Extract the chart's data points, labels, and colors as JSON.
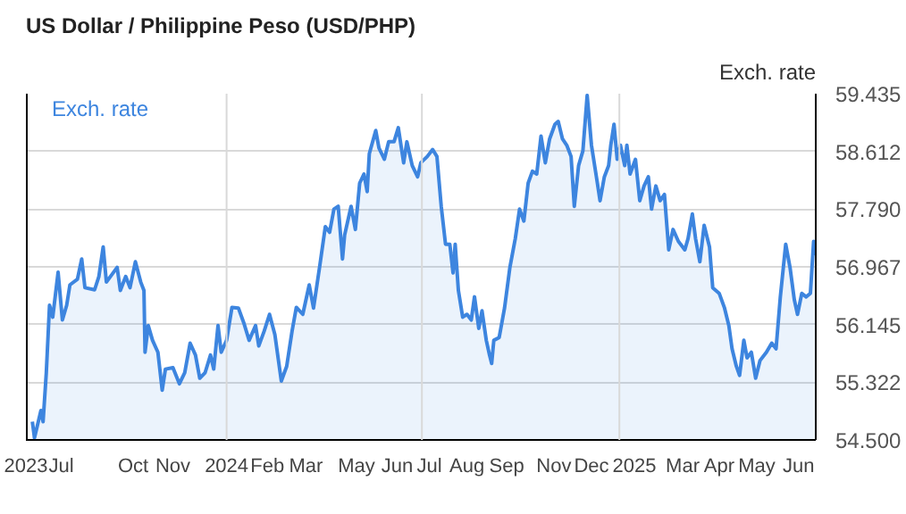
{
  "chart_data": {
    "type": "area",
    "title": "US Dollar / Philippine Peso (USD/PHP)",
    "ylabel": "Exch. rate",
    "legend": "top left",
    "marker": "none",
    "grid": "y",
    "xlim": [
      "2023-06-28",
      "2025-07-03"
    ],
    "ylim": [
      54.5,
      59.435
    ],
    "yticks": [
      {
        "value": 54.5,
        "label": "54.500"
      },
      55.322,
      56.145,
      56.967,
      {
        "value": 57.79,
        "label": "57.790"
      },
      58.612,
      59.435
    ],
    "xticks": [
      {
        "value": "2023-06-28",
        "label": "2023"
      },
      {
        "value": "2023-07-31",
        "label": "Jul"
      },
      {
        "value": "2023-10-06",
        "label": "Oct"
      },
      {
        "value": "2023-11-12",
        "label": "Nov"
      },
      {
        "value": "2024-01-01",
        "label": "2024"
      },
      {
        "value": "2024-02-08",
        "label": "Feb"
      },
      {
        "value": "2024-03-15",
        "label": "Mar"
      },
      {
        "value": "2024-05-01",
        "label": "May"
      },
      {
        "value": "2024-06-08",
        "label": "Jun"
      },
      {
        "value": "2024-07-08",
        "label": "Jul"
      },
      {
        "value": "2024-08-12",
        "label": "Aug"
      },
      {
        "value": "2024-09-18",
        "label": "Sep"
      },
      {
        "value": "2024-11-01",
        "label": "Nov"
      },
      {
        "value": "2024-12-06",
        "label": "Dec"
      },
      {
        "value": "2025-01-15",
        "label": "2025"
      },
      {
        "value": "2025-03-01",
        "label": "Mar"
      },
      {
        "value": "2025-04-04",
        "label": "Apr"
      },
      {
        "value": "2025-05-09",
        "label": "May"
      },
      {
        "value": "2025-06-17",
        "label": "Jun"
      }
    ],
    "ref_lines": [
      {
        "axis": "x",
        "value": "2024-01-01",
        "color": "#d9d9d9"
      },
      {
        "axis": "x",
        "value": "2024-07-01",
        "color": "#d9d9d9"
      },
      {
        "axis": "x",
        "value": "2025-01-01",
        "color": "#d9d9d9"
      }
    ],
    "series": [
      {
        "name": "Exch. rate",
        "color": "#3d85df",
        "x": [
          "2023-07-04",
          "2023-07-06",
          "2023-07-12",
          "2023-07-14",
          "2023-07-17",
          "2023-07-20",
          "2023-07-23",
          "2023-07-28",
          "2023-08-01",
          "2023-08-05",
          "2023-08-08",
          "2023-08-15",
          "2023-08-19",
          "2023-08-22",
          "2023-08-31",
          "2023-09-04",
          "2023-09-08",
          "2023-09-11",
          "2023-09-21",
          "2023-09-24",
          "2023-09-29",
          "2023-10-03",
          "2023-10-08",
          "2023-10-13",
          "2023-10-16",
          "2023-10-17",
          "2023-10-20",
          "2023-10-24",
          "2023-10-29",
          "2023-11-02",
          "2023-11-05",
          "2023-11-12",
          "2023-11-18",
          "2023-11-23",
          "2023-11-28",
          "2023-12-03",
          "2023-12-07",
          "2023-12-12",
          "2023-12-17",
          "2023-12-20",
          "2023-12-24",
          "2023-12-27",
          "2024-01-01",
          "2024-01-06",
          "2024-01-12",
          "2024-01-17",
          "2024-01-22",
          "2024-01-28",
          "2024-01-31",
          "2024-02-05",
          "2024-02-10",
          "2024-02-15",
          "2024-02-21",
          "2024-02-26",
          "2024-03-02",
          "2024-03-06",
          "2024-03-12",
          "2024-03-18",
          "2024-03-22",
          "2024-03-28",
          "2024-04-02",
          "2024-04-06",
          "2024-04-10",
          "2024-04-14",
          "2024-04-18",
          "2024-04-20",
          "2024-04-26",
          "2024-04-30",
          "2024-05-04",
          "2024-05-08",
          "2024-05-11",
          "2024-05-13",
          "2024-05-19",
          "2024-05-22",
          "2024-05-27",
          "2024-05-31",
          "2024-06-05",
          "2024-06-09",
          "2024-06-14",
          "2024-06-17",
          "2024-06-22",
          "2024-06-27",
          "2024-06-30",
          "2024-07-06",
          "2024-07-11",
          "2024-07-15",
          "2024-07-19",
          "2024-07-23",
          "2024-07-27",
          "2024-07-30",
          "2024-08-01",
          "2024-08-04",
          "2024-08-08",
          "2024-08-12",
          "2024-08-16",
          "2024-08-19",
          "2024-08-23",
          "2024-08-26",
          "2024-08-30",
          "2024-09-02",
          "2024-09-04",
          "2024-09-06",
          "2024-09-11",
          "2024-09-16",
          "2024-09-21",
          "2024-09-26",
          "2024-09-30",
          "2024-10-04",
          "2024-10-08",
          "2024-10-12",
          "2024-10-16",
          "2024-10-20",
          "2024-10-24",
          "2024-10-28",
          "2024-11-02",
          "2024-11-05",
          "2024-11-09",
          "2024-11-13",
          "2024-11-17",
          "2024-11-20",
          "2024-11-24",
          "2024-11-28",
          "2024-12-02",
          "2024-12-06",
          "2024-12-11",
          "2024-12-14",
          "2024-12-18",
          "2024-12-22",
          "2024-12-24",
          "2024-12-27",
          "2024-12-30",
          "2025-01-02",
          "2025-01-06",
          "2025-01-08",
          "2025-01-11",
          "2025-01-16",
          "2025-01-20",
          "2025-01-24",
          "2025-01-28",
          "2025-01-31",
          "2025-02-04",
          "2025-02-08",
          "2025-02-12",
          "2025-02-16",
          "2025-02-20",
          "2025-02-25",
          "2025-03-03",
          "2025-03-06",
          "2025-03-10",
          "2025-03-13",
          "2025-03-17",
          "2025-03-21",
          "2025-03-26",
          "2025-03-29",
          "2025-04-04",
          "2025-04-09",
          "2025-04-13",
          "2025-04-16",
          "2025-04-20",
          "2025-04-23",
          "2025-04-27",
          "2025-04-30",
          "2025-05-04",
          "2025-05-08",
          "2025-05-12",
          "2025-05-18",
          "2025-05-23",
          "2025-05-27",
          "2025-05-31",
          "2025-06-05",
          "2025-06-09",
          "2025-06-13",
          "2025-06-16",
          "2025-06-20",
          "2025-06-24",
          "2025-06-28",
          "2025-07-01",
          "2025-07-02"
        ],
        "values": [
          54.76,
          54.53,
          54.92,
          54.76,
          55.46,
          56.42,
          56.25,
          56.89,
          56.21,
          56.42,
          56.71,
          56.79,
          57.08,
          56.67,
          56.64,
          56.83,
          57.25,
          56.75,
          56.96,
          56.63,
          56.83,
          56.67,
          57.04,
          56.75,
          56.63,
          55.75,
          56.13,
          55.92,
          55.75,
          55.21,
          55.51,
          55.53,
          55.3,
          55.46,
          55.88,
          55.71,
          55.38,
          55.46,
          55.71,
          55.51,
          56.13,
          55.75,
          55.92,
          56.39,
          56.38,
          56.17,
          55.92,
          56.13,
          55.84,
          56.05,
          56.29,
          56.0,
          55.34,
          55.55,
          56.05,
          56.39,
          56.29,
          56.71,
          56.38,
          57.0,
          57.54,
          57.46,
          57.79,
          57.83,
          57.08,
          57.42,
          57.83,
          57.5,
          58.16,
          58.29,
          58.04,
          58.58,
          58.91,
          58.66,
          58.5,
          58.75,
          58.75,
          58.95,
          58.45,
          58.75,
          58.41,
          58.25,
          58.45,
          58.54,
          58.64,
          58.54,
          57.83,
          57.29,
          57.29,
          56.88,
          57.29,
          56.63,
          56.25,
          56.29,
          56.21,
          56.54,
          56.09,
          56.34,
          55.92,
          55.71,
          55.59,
          55.92,
          55.96,
          56.38,
          56.96,
          57.37,
          57.79,
          57.62,
          58.16,
          58.33,
          58.29,
          58.83,
          58.45,
          58.79,
          59.0,
          59.04,
          58.79,
          58.7,
          58.54,
          57.83,
          58.41,
          58.62,
          59.41,
          58.7,
          58.21,
          57.91,
          58.25,
          58.41,
          58.7,
          59.0,
          58.5,
          58.7,
          58.41,
          58.7,
          58.29,
          58.5,
          57.91,
          58.12,
          58.25,
          57.79,
          58.12,
          57.91,
          58.0,
          57.21,
          57.5,
          57.33,
          57.21,
          57.37,
          57.72,
          57.37,
          57.04,
          57.56,
          57.25,
          56.67,
          56.59,
          56.38,
          56.13,
          55.8,
          55.55,
          55.42,
          55.92,
          55.67,
          55.75,
          55.38,
          55.63,
          55.75,
          55.88,
          55.8,
          56.54,
          57.29,
          56.96,
          56.5,
          56.29,
          56.59,
          56.54,
          56.59,
          57.33,
          57.13
        ]
      }
    ]
  }
}
